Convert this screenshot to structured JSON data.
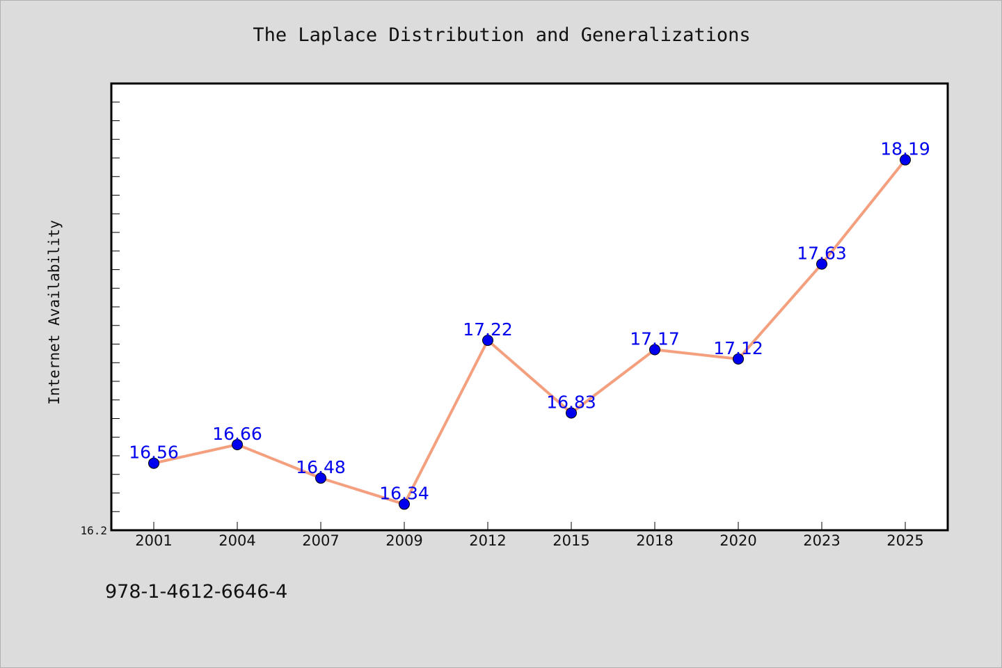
{
  "chart_data": {
    "type": "line",
    "title": "The Laplace Distribution and Generalizations",
    "ylabel": "Internet Availability",
    "xlabel": "",
    "categories": [
      "2001",
      "2004",
      "2007",
      "2009",
      "2012",
      "2015",
      "2018",
      "2020",
      "2023",
      "2025"
    ],
    "values": [
      16.56,
      16.66,
      16.48,
      16.34,
      17.22,
      16.83,
      17.17,
      17.12,
      17.63,
      18.19
    ],
    "data_labels": [
      "16.56",
      "16.66",
      "16.48",
      "16.34",
      "17.22",
      "16.83",
      "17.17",
      "17.12",
      "17.63",
      "18.19"
    ],
    "ylim": [
      16.2,
      18.6
    ],
    "y_tick_labels": [
      "16.2"
    ],
    "grid": false,
    "colors": {
      "line": "#f4a07f",
      "marker": "#0000ee",
      "data_label": "#0000ee",
      "plot_background": "#ffffff",
      "page_background": "#dcdcdc"
    }
  },
  "footer": {
    "isbn": "978-1-4612-6646-4"
  }
}
